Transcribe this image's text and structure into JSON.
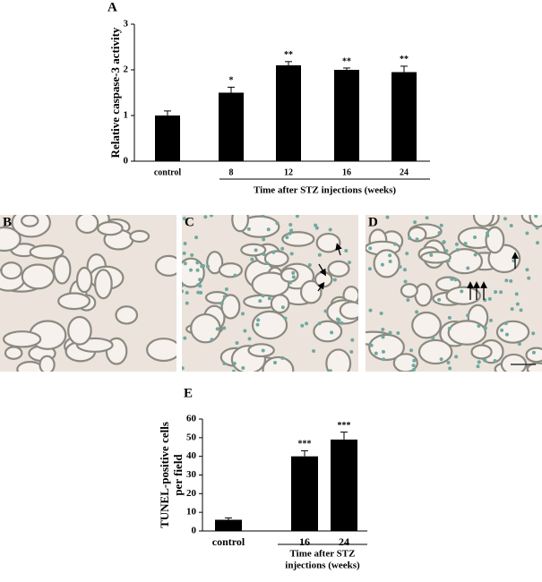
{
  "chart_data": [
    {
      "type": "bar",
      "panel_label": "A",
      "ylabel": "Relative caspase-3 activity",
      "categories": [
        "control",
        "8",
        "12",
        "16",
        "24"
      ],
      "values": [
        1.0,
        1.5,
        2.1,
        2.0,
        1.95
      ],
      "errors": [
        0.1,
        0.12,
        0.08,
        0.04,
        0.13
      ],
      "significance": [
        null,
        "*",
        "**",
        "**",
        "**"
      ],
      "xlabel": "Time after STZ injections (weeks)",
      "color": "#000000",
      "ylim": [
        0,
        3
      ],
      "yticks": [
        0,
        1,
        2,
        3
      ]
    },
    {
      "type": "bar",
      "panel_label": "E",
      "ylabel_lines": [
        "TUNEL-positive cells",
        "per field"
      ],
      "categories": [
        "control",
        "16",
        "24"
      ],
      "values": [
        6,
        40,
        49
      ],
      "errors": [
        1,
        3,
        4
      ],
      "significance": [
        null,
        "***",
        "***"
      ],
      "xlabel_lines": [
        "Time after STZ",
        "injections (weeks)"
      ],
      "color": "#000000",
      "ylim": [
        0,
        60
      ],
      "yticks": [
        0,
        10,
        20,
        30,
        40,
        50,
        60
      ]
    }
  ],
  "micrographs": [
    {
      "label": "B"
    },
    {
      "label": "C"
    },
    {
      "label": "D"
    }
  ]
}
